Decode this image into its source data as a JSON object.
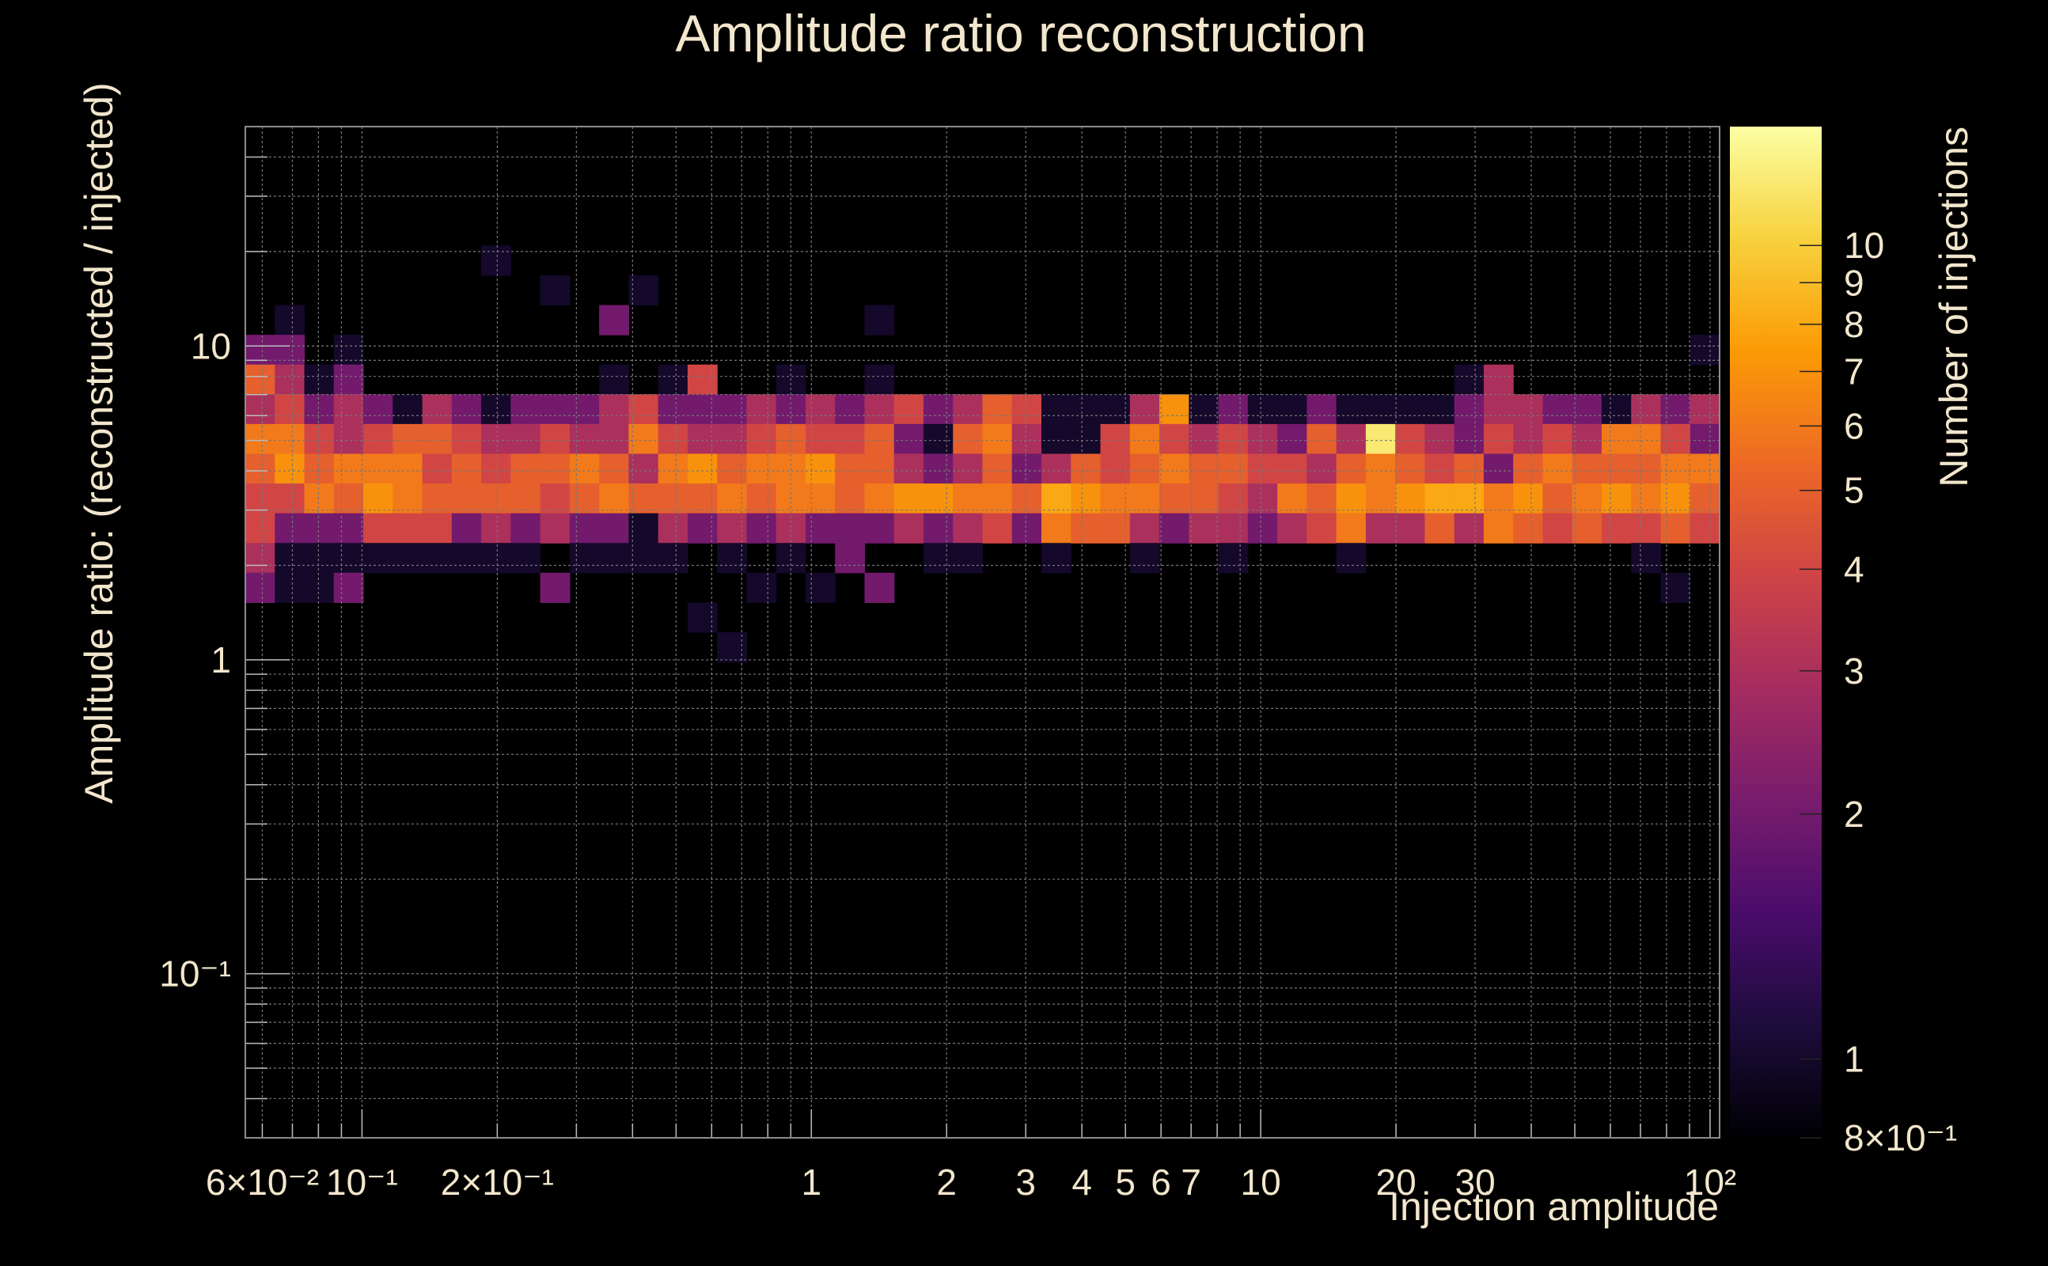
{
  "chart_data": {
    "type": "heatmap",
    "title": "Amplitude ratio reconstruction",
    "xlabel": "Injection amplitude",
    "ylabel": "Amplitude ratio: (reconstructed / injected)",
    "zlabel": "Number of injections",
    "x_scale": "log",
    "y_scale": "log",
    "z_scale": "log",
    "xlim": [
      0.055,
      105
    ],
    "ylim": [
      0.03,
      50
    ],
    "zlim": [
      0.8,
      14
    ],
    "grid": true,
    "colormap": [
      "#000004",
      "#1c0c3b",
      "#4a0c6b",
      "#781c6d",
      "#a52c60",
      "#cf4446",
      "#ed6925",
      "#fb9b06",
      "#f7d13d",
      "#fcffa4"
    ],
    "x_ticks": [
      {
        "label": "6×10⁻²",
        "value": 0.06
      },
      {
        "label": "10⁻¹",
        "value": 0.1
      },
      {
        "label": "2×10⁻¹",
        "value": 0.2
      },
      {
        "label": "1",
        "value": 1
      },
      {
        "label": "2",
        "value": 2
      },
      {
        "label": "3",
        "value": 3
      },
      {
        "label": "4",
        "value": 4
      },
      {
        "label": "5",
        "value": 5
      },
      {
        "label": "6",
        "value": 6
      },
      {
        "label": "7",
        "value": 7
      },
      {
        "label": "10",
        "value": 10
      },
      {
        "label": "20",
        "value": 20
      },
      {
        "label": "30",
        "value": 30
      },
      {
        "label": "10²",
        "value": 100
      }
    ],
    "y_ticks": [
      {
        "label": "10⁻¹",
        "value": 0.1
      },
      {
        "label": "1",
        "value": 1
      },
      {
        "label": "10",
        "value": 10
      }
    ],
    "z_ticks": [
      {
        "label": "8×10⁻¹",
        "value": 0.8
      },
      {
        "label": "1",
        "value": 1
      },
      {
        "label": "2",
        "value": 2
      },
      {
        "label": "3",
        "value": 3
      },
      {
        "label": "4",
        "value": 4
      },
      {
        "label": "5",
        "value": 5
      },
      {
        "label": "6",
        "value": 6
      },
      {
        "label": "7",
        "value": 7
      },
      {
        "label": "8",
        "value": 8
      },
      {
        "label": "9",
        "value": 9
      },
      {
        "label": "10",
        "value": 10
      }
    ],
    "x_bin_count": 50,
    "y_bin_count": 34,
    "bins": [
      [
        0,
        26,
        2
      ],
      [
        0,
        25,
        5
      ],
      [
        0,
        24,
        3
      ],
      [
        0,
        23,
        6
      ],
      [
        0,
        22,
        5
      ],
      [
        0,
        21,
        4
      ],
      [
        0,
        20,
        4
      ],
      [
        0,
        19,
        3
      ],
      [
        0,
        18,
        2
      ],
      [
        1,
        27,
        1
      ],
      [
        1,
        26,
        2
      ],
      [
        1,
        25,
        3
      ],
      [
        1,
        24,
        4
      ],
      [
        1,
        23,
        6
      ],
      [
        1,
        22,
        7
      ],
      [
        1,
        21,
        4
      ],
      [
        1,
        20,
        2
      ],
      [
        1,
        19,
        1
      ],
      [
        1,
        18,
        1
      ],
      [
        2,
        25,
        1
      ],
      [
        2,
        24,
        2
      ],
      [
        2,
        23,
        4
      ],
      [
        2,
        22,
        5
      ],
      [
        2,
        21,
        6
      ],
      [
        2,
        20,
        2
      ],
      [
        2,
        19,
        1
      ],
      [
        2,
        18,
        1
      ],
      [
        3,
        26,
        1
      ],
      [
        3,
        25,
        2
      ],
      [
        3,
        24,
        3
      ],
      [
        3,
        23,
        3
      ],
      [
        3,
        22,
        6
      ],
      [
        3,
        21,
        5
      ],
      [
        3,
        20,
        2
      ],
      [
        3,
        19,
        1
      ],
      [
        3,
        18,
        2
      ],
      [
        4,
        24,
        2
      ],
      [
        4,
        23,
        4
      ],
      [
        4,
        22,
        6
      ],
      [
        4,
        21,
        7
      ],
      [
        4,
        20,
        4
      ],
      [
        4,
        19,
        1
      ],
      [
        5,
        24,
        1
      ],
      [
        5,
        23,
        5
      ],
      [
        5,
        22,
        6
      ],
      [
        5,
        21,
        6
      ],
      [
        5,
        20,
        4
      ],
      [
        5,
        19,
        1
      ],
      [
        6,
        24,
        3
      ],
      [
        6,
        23,
        5
      ],
      [
        6,
        22,
        4
      ],
      [
        6,
        21,
        5
      ],
      [
        6,
        20,
        4
      ],
      [
        6,
        19,
        1
      ],
      [
        7,
        24,
        2
      ],
      [
        7,
        23,
        4
      ],
      [
        7,
        22,
        5
      ],
      [
        7,
        21,
        5
      ],
      [
        7,
        20,
        2
      ],
      [
        7,
        19,
        1
      ],
      [
        8,
        29,
        1
      ],
      [
        8,
        24,
        1
      ],
      [
        8,
        23,
        3
      ],
      [
        8,
        22,
        4
      ],
      [
        8,
        21,
        5
      ],
      [
        8,
        20,
        3
      ],
      [
        8,
        19,
        1
      ],
      [
        9,
        24,
        2
      ],
      [
        9,
        23,
        3
      ],
      [
        9,
        22,
        5
      ],
      [
        9,
        21,
        5
      ],
      [
        9,
        20,
        2
      ],
      [
        9,
        19,
        1
      ],
      [
        10,
        28,
        1
      ],
      [
        10,
        24,
        2
      ],
      [
        10,
        23,
        4
      ],
      [
        10,
        22,
        5
      ],
      [
        10,
        21,
        4
      ],
      [
        10,
        20,
        3
      ],
      [
        10,
        18,
        2
      ],
      [
        11,
        24,
        2
      ],
      [
        11,
        23,
        3
      ],
      [
        11,
        22,
        6
      ],
      [
        11,
        21,
        5
      ],
      [
        11,
        20,
        2
      ],
      [
        11,
        19,
        1
      ],
      [
        12,
        27,
        2
      ],
      [
        12,
        25,
        1
      ],
      [
        12,
        24,
        3
      ],
      [
        12,
        23,
        3
      ],
      [
        12,
        22,
        5
      ],
      [
        12,
        21,
        6
      ],
      [
        12,
        20,
        2
      ],
      [
        12,
        19,
        1
      ],
      [
        13,
        28,
        1
      ],
      [
        13,
        24,
        4
      ],
      [
        13,
        23,
        6
      ],
      [
        13,
        22,
        3
      ],
      [
        13,
        21,
        5
      ],
      [
        13,
        20,
        1
      ],
      [
        13,
        19,
        1
      ],
      [
        14,
        25,
        1
      ],
      [
        14,
        24,
        2
      ],
      [
        14,
        23,
        4
      ],
      [
        14,
        22,
        6
      ],
      [
        14,
        21,
        5
      ],
      [
        14,
        20,
        3
      ],
      [
        14,
        19,
        1
      ],
      [
        15,
        25,
        4
      ],
      [
        15,
        24,
        2
      ],
      [
        15,
        23,
        3
      ],
      [
        15,
        22,
        7
      ],
      [
        15,
        21,
        5
      ],
      [
        15,
        20,
        2
      ],
      [
        15,
        17,
        1
      ],
      [
        16,
        24,
        2
      ],
      [
        16,
        23,
        3
      ],
      [
        16,
        22,
        5
      ],
      [
        16,
        21,
        6
      ],
      [
        16,
        20,
        3
      ],
      [
        16,
        19,
        1
      ],
      [
        16,
        16,
        1
      ],
      [
        17,
        24,
        3
      ],
      [
        17,
        23,
        4
      ],
      [
        17,
        22,
        6
      ],
      [
        17,
        21,
        5
      ],
      [
        17,
        20,
        2
      ],
      [
        17,
        18,
        1
      ],
      [
        18,
        25,
        1
      ],
      [
        18,
        24,
        2
      ],
      [
        18,
        23,
        5
      ],
      [
        18,
        22,
        6
      ],
      [
        18,
        21,
        6
      ],
      [
        18,
        20,
        3
      ],
      [
        18,
        19,
        1
      ],
      [
        19,
        24,
        3
      ],
      [
        19,
        23,
        4
      ],
      [
        19,
        22,
        7
      ],
      [
        19,
        21,
        6
      ],
      [
        19,
        20,
        2
      ],
      [
        19,
        18,
        1
      ],
      [
        20,
        24,
        2
      ],
      [
        20,
        23,
        4
      ],
      [
        20,
        22,
        5
      ],
      [
        20,
        21,
        5
      ],
      [
        20,
        20,
        2
      ],
      [
        20,
        19,
        2
      ],
      [
        21,
        27,
        1
      ],
      [
        21,
        25,
        1
      ],
      [
        21,
        24,
        3
      ],
      [
        21,
        23,
        5
      ],
      [
        21,
        22,
        5
      ],
      [
        21,
        21,
        6
      ],
      [
        21,
        20,
        2
      ],
      [
        21,
        18,
        2
      ],
      [
        22,
        24,
        4
      ],
      [
        22,
        23,
        2
      ],
      [
        22,
        22,
        3
      ],
      [
        22,
        21,
        7
      ],
      [
        22,
        20,
        3
      ],
      [
        23,
        24,
        2
      ],
      [
        23,
        23,
        1
      ],
      [
        23,
        22,
        2
      ],
      [
        23,
        21,
        7
      ],
      [
        23,
        20,
        2
      ],
      [
        23,
        19,
        1
      ],
      [
        24,
        24,
        3
      ],
      [
        24,
        23,
        5
      ],
      [
        24,
        22,
        3
      ],
      [
        24,
        21,
        6
      ],
      [
        24,
        20,
        3
      ],
      [
        24,
        19,
        1
      ],
      [
        25,
        24,
        5
      ],
      [
        25,
        23,
        6
      ],
      [
        25,
        22,
        5
      ],
      [
        25,
        21,
        6
      ],
      [
        25,
        20,
        4
      ],
      [
        26,
        24,
        4
      ],
      [
        26,
        23,
        3
      ],
      [
        26,
        22,
        2
      ],
      [
        26,
        21,
        5
      ],
      [
        26,
        20,
        2
      ],
      [
        27,
        24,
        1
      ],
      [
        27,
        23,
        1
      ],
      [
        27,
        22,
        3
      ],
      [
        27,
        21,
        8
      ],
      [
        27,
        20,
        6
      ],
      [
        27,
        19,
        1
      ],
      [
        28,
        24,
        1
      ],
      [
        28,
        23,
        1
      ],
      [
        28,
        22,
        5
      ],
      [
        28,
        21,
        7
      ],
      [
        28,
        20,
        5
      ],
      [
        29,
        24,
        1
      ],
      [
        29,
        23,
        4
      ],
      [
        29,
        22,
        4
      ],
      [
        29,
        21,
        6
      ],
      [
        29,
        20,
        5
      ],
      [
        30,
        24,
        3
      ],
      [
        30,
        23,
        6
      ],
      [
        30,
        22,
        5
      ],
      [
        30,
        21,
        6
      ],
      [
        30,
        20,
        3
      ],
      [
        30,
        19,
        1
      ],
      [
        31,
        24,
        7
      ],
      [
        31,
        23,
        4
      ],
      [
        31,
        22,
        6
      ],
      [
        31,
        21,
        5
      ],
      [
        31,
        20,
        2
      ],
      [
        32,
        24,
        1
      ],
      [
        32,
        23,
        3
      ],
      [
        32,
        22,
        5
      ],
      [
        32,
        21,
        5
      ],
      [
        32,
        20,
        3
      ],
      [
        33,
        24,
        2
      ],
      [
        33,
        23,
        4
      ],
      [
        33,
        22,
        5
      ],
      [
        33,
        21,
        4
      ],
      [
        33,
        20,
        3
      ],
      [
        33,
        19,
        1
      ],
      [
        34,
        24,
        1
      ],
      [
        34,
        23,
        3
      ],
      [
        34,
        22,
        4
      ],
      [
        34,
        21,
        3
      ],
      [
        34,
        20,
        2
      ],
      [
        35,
        24,
        1
      ],
      [
        35,
        23,
        2
      ],
      [
        35,
        22,
        4
      ],
      [
        35,
        21,
        6
      ],
      [
        35,
        20,
        3
      ],
      [
        36,
        24,
        2
      ],
      [
        36,
        23,
        5
      ],
      [
        36,
        22,
        3
      ],
      [
        36,
        21,
        5
      ],
      [
        36,
        20,
        4
      ],
      [
        37,
        24,
        1
      ],
      [
        37,
        23,
        3
      ],
      [
        37,
        22,
        5
      ],
      [
        37,
        21,
        7
      ],
      [
        37,
        20,
        6
      ],
      [
        37,
        19,
        1
      ],
      [
        38,
        24,
        1
      ],
      [
        38,
        23,
        12
      ],
      [
        38,
        22,
        6
      ],
      [
        38,
        21,
        6
      ],
      [
        38,
        20,
        3
      ],
      [
        39,
        24,
        1
      ],
      [
        39,
        23,
        4
      ],
      [
        39,
        22,
        5
      ],
      [
        39,
        21,
        7
      ],
      [
        39,
        20,
        3
      ],
      [
        40,
        24,
        1
      ],
      [
        40,
        23,
        3
      ],
      [
        40,
        22,
        4
      ],
      [
        40,
        21,
        8
      ],
      [
        40,
        20,
        5
      ],
      [
        41,
        25,
        1
      ],
      [
        41,
        24,
        2
      ],
      [
        41,
        23,
        2
      ],
      [
        41,
        22,
        5
      ],
      [
        41,
        21,
        8
      ],
      [
        41,
        20,
        3
      ],
      [
        42,
        25,
        3
      ],
      [
        42,
        24,
        3
      ],
      [
        42,
        23,
        4
      ],
      [
        42,
        22,
        2
      ],
      [
        42,
        21,
        6
      ],
      [
        42,
        20,
        6
      ],
      [
        43,
        24,
        3
      ],
      [
        43,
        23,
        3
      ],
      [
        43,
        22,
        5
      ],
      [
        43,
        21,
        7
      ],
      [
        43,
        20,
        5
      ],
      [
        44,
        24,
        2
      ],
      [
        44,
        23,
        4
      ],
      [
        44,
        22,
        6
      ],
      [
        44,
        21,
        5
      ],
      [
        44,
        20,
        4
      ],
      [
        45,
        24,
        2
      ],
      [
        45,
        23,
        3
      ],
      [
        45,
        22,
        5
      ],
      [
        45,
        21,
        6
      ],
      [
        45,
        20,
        5
      ],
      [
        46,
        24,
        1
      ],
      [
        46,
        23,
        6
      ],
      [
        46,
        22,
        5
      ],
      [
        46,
        21,
        7
      ],
      [
        46,
        20,
        4
      ],
      [
        47,
        24,
        3
      ],
      [
        47,
        23,
        6
      ],
      [
        47,
        22,
        5
      ],
      [
        47,
        21,
        6
      ],
      [
        47,
        20,
        4
      ],
      [
        47,
        19,
        1
      ],
      [
        48,
        24,
        2
      ],
      [
        48,
        23,
        4
      ],
      [
        48,
        22,
        6
      ],
      [
        48,
        21,
        7
      ],
      [
        48,
        20,
        5
      ],
      [
        48,
        18,
        1
      ],
      [
        49,
        26,
        1
      ],
      [
        49,
        24,
        3
      ],
      [
        49,
        23,
        2
      ],
      [
        49,
        22,
        6
      ],
      [
        49,
        21,
        5
      ],
      [
        49,
        20,
        4
      ]
    ]
  }
}
